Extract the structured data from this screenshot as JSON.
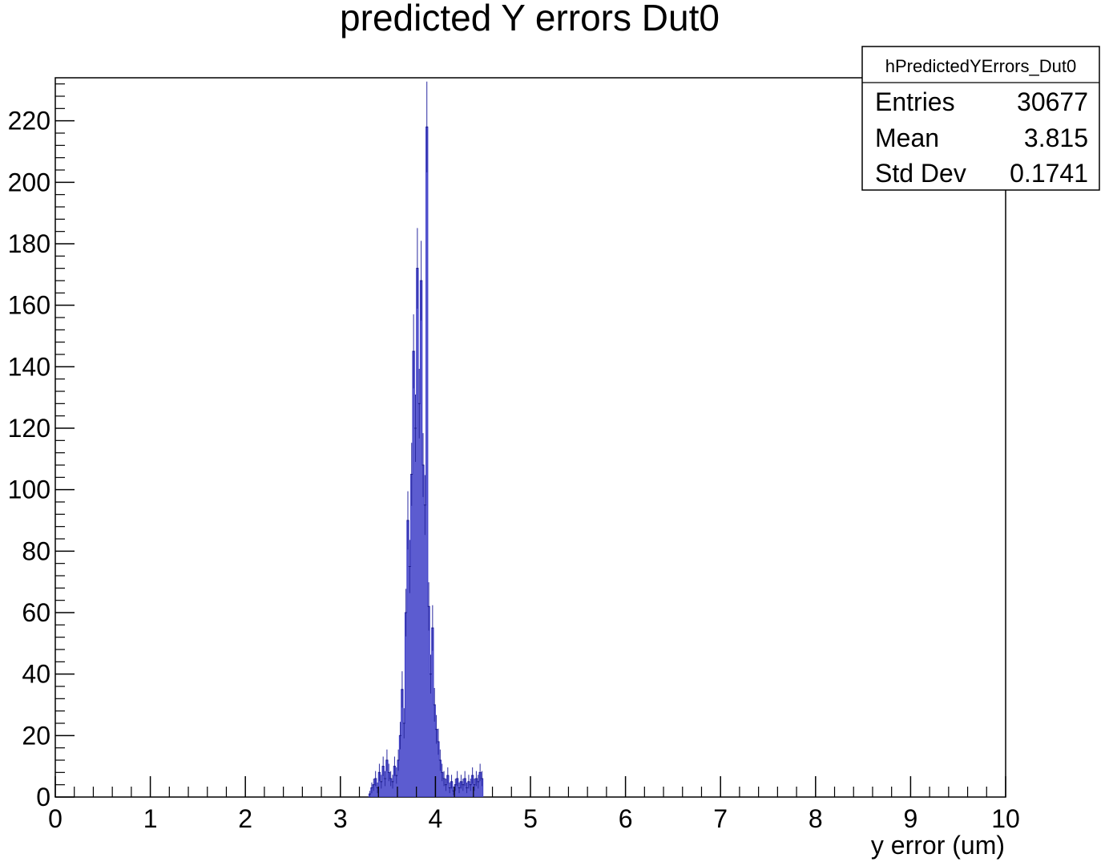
{
  "chart_data": {
    "type": "histogram",
    "title": "predicted Y errors Dut0",
    "xlabel": "y error (um)",
    "ylabel": "",
    "xlim": [
      0,
      10
    ],
    "ylim": [
      0,
      234
    ],
    "x_ticks": [
      "0",
      "1",
      "2",
      "3",
      "4",
      "5",
      "6",
      "7",
      "8",
      "9",
      "10"
    ],
    "y_ticks": [
      "0",
      "20",
      "40",
      "60",
      "80",
      "100",
      "120",
      "140",
      "160",
      "180",
      "200",
      "220"
    ],
    "series": [
      {
        "color": "#4040c8",
        "bin_width": 0.02,
        "bins": [
          [
            3.3,
            1
          ],
          [
            3.32,
            3
          ],
          [
            3.34,
            4
          ],
          [
            3.36,
            6
          ],
          [
            3.38,
            3
          ],
          [
            3.4,
            8
          ],
          [
            3.42,
            5
          ],
          [
            3.44,
            10
          ],
          [
            3.46,
            6
          ],
          [
            3.48,
            12
          ],
          [
            3.5,
            8
          ],
          [
            3.52,
            6
          ],
          [
            3.54,
            5
          ],
          [
            3.56,
            10
          ],
          [
            3.58,
            7
          ],
          [
            3.6,
            12
          ],
          [
            3.62,
            20
          ],
          [
            3.64,
            35
          ],
          [
            3.66,
            24
          ],
          [
            3.68,
            60
          ],
          [
            3.7,
            90
          ],
          [
            3.72,
            75
          ],
          [
            3.74,
            105
          ],
          [
            3.76,
            145
          ],
          [
            3.78,
            120
          ],
          [
            3.8,
            172
          ],
          [
            3.82,
            128
          ],
          [
            3.84,
            168
          ],
          [
            3.86,
            108
          ],
          [
            3.88,
            95
          ],
          [
            3.9,
            218
          ],
          [
            3.92,
            62
          ],
          [
            3.94,
            40
          ],
          [
            3.96,
            55
          ],
          [
            3.98,
            30
          ],
          [
            4.0,
            22
          ],
          [
            4.02,
            18
          ],
          [
            4.04,
            12
          ],
          [
            4.06,
            8
          ],
          [
            4.08,
            6
          ],
          [
            4.1,
            4
          ],
          [
            4.12,
            7
          ],
          [
            4.14,
            3
          ],
          [
            4.16,
            5
          ],
          [
            4.18,
            2
          ],
          [
            4.2,
            4
          ],
          [
            4.22,
            6
          ],
          [
            4.24,
            3
          ],
          [
            4.26,
            5
          ],
          [
            4.28,
            4
          ],
          [
            4.3,
            6
          ],
          [
            4.32,
            3
          ],
          [
            4.34,
            5
          ],
          [
            4.36,
            4
          ],
          [
            4.38,
            7
          ],
          [
            4.4,
            4
          ],
          [
            4.42,
            6
          ],
          [
            4.44,
            5
          ],
          [
            4.46,
            8
          ],
          [
            4.48,
            6
          ]
        ]
      }
    ],
    "stats_box": {
      "name": "hPredictedYErrors_Dut0",
      "rows": [
        {
          "label": "Entries",
          "value": "30677"
        },
        {
          "label": "Mean",
          "value": "3.815"
        },
        {
          "label": "Std Dev",
          "value": "0.1741"
        }
      ]
    }
  }
}
